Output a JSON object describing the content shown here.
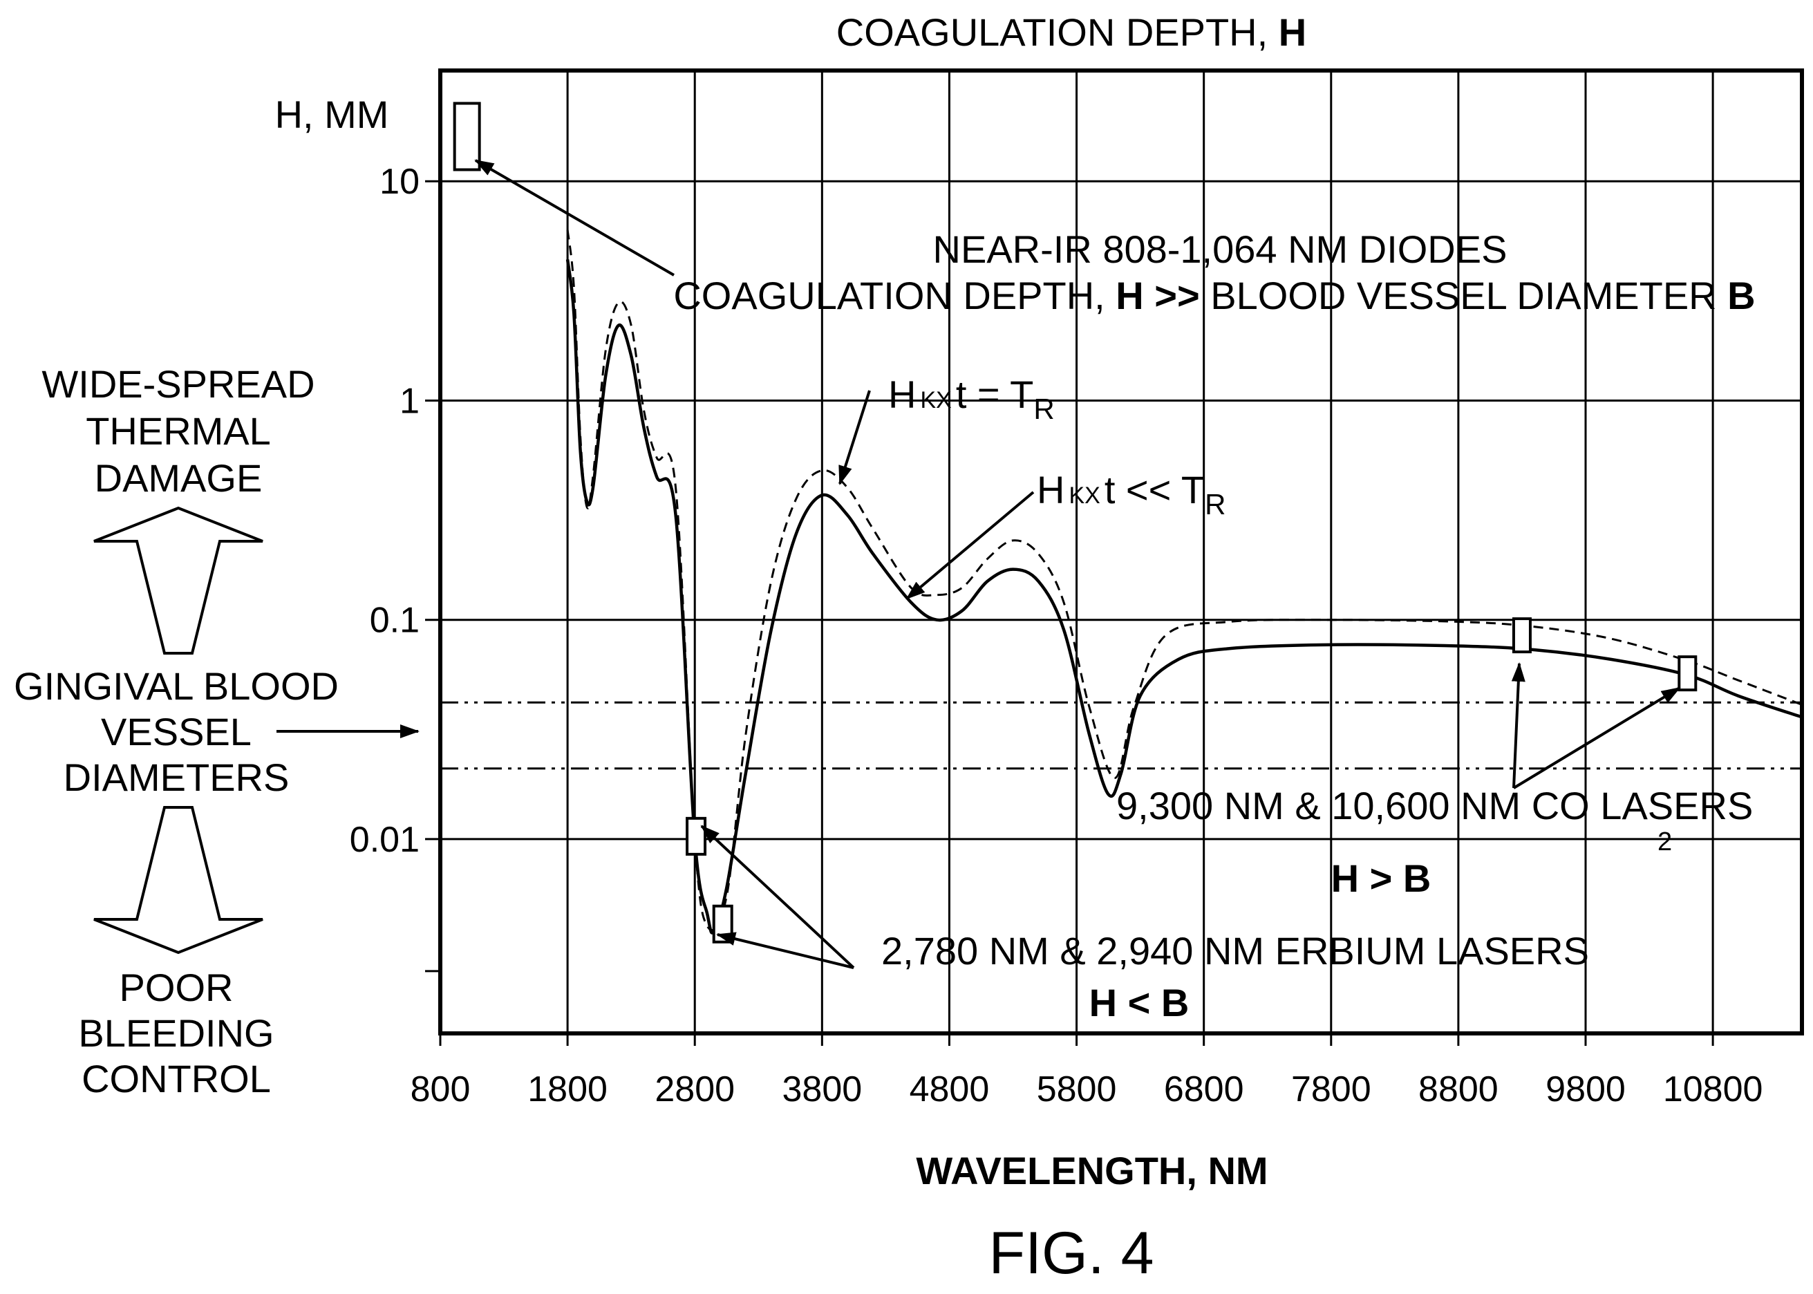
{
  "figure": {
    "title_prefix": "COAGULATION DEPTH, ",
    "title_bold": "H",
    "caption": "FIG. 4",
    "y_unit_label": "H, MM",
    "left_labels": {
      "top": [
        "WIDE-SPREAD",
        "THERMAL",
        "DAMAGE"
      ],
      "middle": [
        "GINGIVAL BLOOD",
        "VESSEL",
        "DIAMETERS"
      ],
      "bottom": [
        "POOR",
        "BLEEDING",
        "CONTROL"
      ]
    },
    "annotations": {
      "diodes_line1": "NEAR-IR 808-1,064 NM DIODES",
      "diodes_line2_a": "COAGULATION DEPTH, ",
      "diodes_line2_b": "H >>",
      "diodes_line2_c": " BLOOD VESSEL DIAMETER ",
      "diodes_line2_d": "B",
      "hkxt_eq_h": "H",
      "hkxt_eq_sub": "KX",
      "hkxt_eq_rest": "t = T",
      "hkxt_eq_r": "R",
      "hkxt_ll_h": "H",
      "hkxt_ll_sub": "KX",
      "hkxt_ll_rest": "t << T",
      "hkxt_ll_r": "R",
      "co2_main": "9,300 NM & 10,600 NM CO   LASERS",
      "co2_sub": "2",
      "h_gt_b": "H > B",
      "erbium": "2,780 NM & 2,940 NM ERBIUM LASERS",
      "h_lt_b": "H < B"
    }
  },
  "chart_data": {
    "type": "line",
    "xlabel": "WAVELENGTH, NM",
    "ylabel": "H, MM",
    "title": "COAGULATION DEPTH, H",
    "y_scale": "log",
    "xlim": [
      800,
      11500
    ],
    "ylim": [
      0.0013,
      32
    ],
    "x_ticks": [
      800,
      1800,
      2800,
      3800,
      4800,
      5800,
      6800,
      7800,
      8800,
      9800,
      10800
    ],
    "y_ticks": [
      0.01,
      0.1,
      1,
      10
    ],
    "y_tick_labels": [
      "0.01",
      "0.1",
      "1",
      "10"
    ],
    "grid": true,
    "series": [
      {
        "style": "solid",
        "points": [
          [
            1800,
            4.4
          ],
          [
            1850,
            2.5
          ],
          [
            1900,
            0.6
          ],
          [
            1950,
            0.35
          ],
          [
            2000,
            0.4
          ],
          [
            2100,
            1.3
          ],
          [
            2200,
            2.2
          ],
          [
            2300,
            1.6
          ],
          [
            2400,
            0.75
          ],
          [
            2500,
            0.45
          ],
          [
            2650,
            0.3
          ],
          [
            2800,
            0.01
          ],
          [
            2900,
            0.0045
          ],
          [
            2950,
            0.0038
          ],
          [
            3050,
            0.006
          ],
          [
            3200,
            0.02
          ],
          [
            3400,
            0.09
          ],
          [
            3600,
            0.25
          ],
          [
            3800,
            0.37
          ],
          [
            4000,
            0.3
          ],
          [
            4200,
            0.2
          ],
          [
            4500,
            0.12
          ],
          [
            4700,
            0.1
          ],
          [
            4900,
            0.11
          ],
          [
            5100,
            0.15
          ],
          [
            5300,
            0.17
          ],
          [
            5500,
            0.15
          ],
          [
            5700,
            0.09
          ],
          [
            5900,
            0.03
          ],
          [
            6050,
            0.016
          ],
          [
            6150,
            0.02
          ],
          [
            6300,
            0.045
          ],
          [
            6600,
            0.066
          ],
          [
            7000,
            0.074
          ],
          [
            7800,
            0.077
          ],
          [
            8800,
            0.076
          ],
          [
            9400,
            0.073
          ],
          [
            10000,
            0.066
          ],
          [
            10600,
            0.056
          ],
          [
            11000,
            0.045
          ],
          [
            11500,
            0.036
          ]
        ]
      },
      {
        "style": "dashed",
        "points": [
          [
            1800,
            6.0
          ],
          [
            1850,
            3.3
          ],
          [
            1900,
            0.7
          ],
          [
            1950,
            0.33
          ],
          [
            2000,
            0.45
          ],
          [
            2100,
            1.7
          ],
          [
            2200,
            2.8
          ],
          [
            2300,
            2.2
          ],
          [
            2400,
            0.9
          ],
          [
            2500,
            0.55
          ],
          [
            2650,
            0.4
          ],
          [
            2800,
            0.01
          ],
          [
            2900,
            0.004
          ],
          [
            3050,
            0.0055
          ],
          [
            3200,
            0.03
          ],
          [
            3400,
            0.15
          ],
          [
            3600,
            0.36
          ],
          [
            3800,
            0.48
          ],
          [
            4000,
            0.4
          ],
          [
            4200,
            0.26
          ],
          [
            4500,
            0.14
          ],
          [
            4700,
            0.13
          ],
          [
            4900,
            0.14
          ],
          [
            5100,
            0.19
          ],
          [
            5300,
            0.23
          ],
          [
            5500,
            0.2
          ],
          [
            5700,
            0.12
          ],
          [
            5900,
            0.04
          ],
          [
            6100,
            0.019
          ],
          [
            6250,
            0.04
          ],
          [
            6500,
            0.085
          ],
          [
            7000,
            0.098
          ],
          [
            7800,
            0.1
          ],
          [
            8800,
            0.098
          ],
          [
            9400,
            0.093
          ],
          [
            10000,
            0.082
          ],
          [
            10600,
            0.065
          ],
          [
            11000,
            0.053
          ],
          [
            11500,
            0.041
          ]
        ]
      }
    ],
    "threshold_lines": [
      0.042,
      0.021
    ],
    "markers": [
      [
        1010,
        16
      ],
      [
        2810,
        0.0103
      ],
      [
        3020,
        0.0041
      ],
      [
        9300,
        0.085
      ],
      [
        10600,
        0.057
      ]
    ]
  }
}
